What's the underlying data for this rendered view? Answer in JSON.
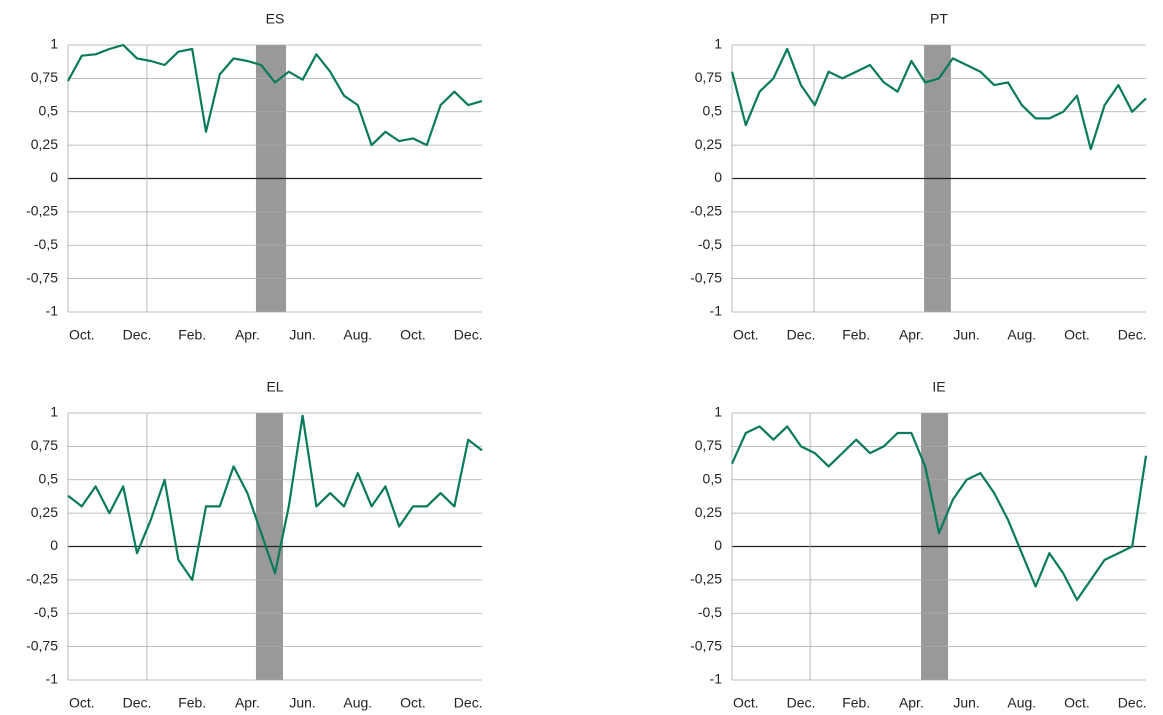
{
  "chart_data": [
    {
      "type": "line",
      "title": "ES",
      "color": "#0a7a5c",
      "grid": true,
      "zero_line": true,
      "vline": 2.36,
      "shade": [
        6.31,
        7.4
      ],
      "xlim": [
        -0.5,
        14.5
      ],
      "ylim": [
        -1,
        1
      ],
      "xticks": [
        {
          "value": 0,
          "label": "Oct."
        },
        {
          "value": 2,
          "label": "Dec."
        },
        {
          "value": 4,
          "label": "Feb."
        },
        {
          "value": 6,
          "label": "Apr."
        },
        {
          "value": 8,
          "label": "Jun."
        },
        {
          "value": 10,
          "label": "Aug."
        },
        {
          "value": 12,
          "label": "Oct."
        },
        {
          "value": 14,
          "label": "Dec."
        }
      ],
      "yticks": [
        1,
        {
          "value": 0.75,
          "label": "0,75"
        },
        {
          "value": 0.5,
          "label": "0,5"
        },
        {
          "value": 0.25,
          "label": "0,25"
        },
        0,
        {
          "value": -0.25,
          "label": "-0,25"
        },
        {
          "value": -0.5,
          "label": "-0,5"
        },
        {
          "value": -0.75,
          "label": "-0,75"
        },
        -1
      ],
      "x": [
        -0.5,
        0,
        0.5,
        1,
        1.5,
        2,
        2.5,
        3,
        3.5,
        4,
        4.5,
        5,
        5.5,
        6,
        6.5,
        7,
        7.5,
        8,
        8.5,
        9,
        9.5,
        10,
        10.5,
        11,
        11.5,
        12,
        12.5,
        13,
        13.5,
        14,
        14.5
      ],
      "values": [
        0.73,
        0.92,
        0.93,
        0.97,
        1.0,
        0.9,
        0.88,
        0.85,
        0.95,
        0.97,
        0.35,
        0.78,
        0.9,
        0.88,
        0.85,
        0.72,
        0.8,
        0.74,
        0.93,
        0.8,
        0.62,
        0.55,
        0.25,
        0.35,
        0.28,
        0.3,
        0.25,
        0.55,
        0.65,
        0.55,
        0.58
      ]
    },
    {
      "type": "line",
      "title": "PT",
      "color": "#0a7a5c",
      "grid": true,
      "zero_line": true,
      "vline": 2.47,
      "shade": [
        6.46,
        7.43
      ],
      "xlim": [
        -0.5,
        14.5
      ],
      "ylim": [
        -1,
        1
      ],
      "xticks": [
        {
          "value": 0,
          "label": "Oct."
        },
        {
          "value": 2,
          "label": "Dec."
        },
        {
          "value": 4,
          "label": "Feb."
        },
        {
          "value": 6,
          "label": "Apr."
        },
        {
          "value": 8,
          "label": "Jun."
        },
        {
          "value": 10,
          "label": "Aug."
        },
        {
          "value": 12,
          "label": "Oct."
        },
        {
          "value": 14,
          "label": "Dec."
        }
      ],
      "yticks": [
        1,
        {
          "value": 0.75,
          "label": "0,75"
        },
        {
          "value": 0.5,
          "label": "0,5"
        },
        {
          "value": 0.25,
          "label": "0,25"
        },
        0,
        {
          "value": -0.25,
          "label": "-0,25"
        },
        {
          "value": -0.5,
          "label": "-0,5"
        },
        {
          "value": -0.75,
          "label": "-0,75"
        },
        -1
      ],
      "x": [
        -0.5,
        0,
        0.5,
        1,
        1.5,
        2,
        2.5,
        3,
        3.5,
        4,
        4.5,
        5,
        5.5,
        6,
        6.5,
        7,
        7.5,
        8,
        8.5,
        9,
        9.5,
        10,
        10.5,
        11,
        11.5,
        12,
        12.5,
        13,
        13.5,
        14,
        14.5
      ],
      "values": [
        0.8,
        0.4,
        0.65,
        0.75,
        0.97,
        0.7,
        0.55,
        0.8,
        0.75,
        0.8,
        0.85,
        0.72,
        0.65,
        0.88,
        0.72,
        0.75,
        0.9,
        0.85,
        0.8,
        0.7,
        0.72,
        0.55,
        0.45,
        0.45,
        0.5,
        0.62,
        0.22,
        0.55,
        0.7,
        0.5,
        0.6
      ]
    },
    {
      "type": "line",
      "title": "EL",
      "color": "#0a7a5c",
      "grid": true,
      "zero_line": true,
      "vline": 2.36,
      "shade": [
        6.31,
        7.29
      ],
      "xlim": [
        -0.5,
        14.5
      ],
      "ylim": [
        -1,
        1
      ],
      "xticks": [
        {
          "value": 0,
          "label": "Oct."
        },
        {
          "value": 2,
          "label": "Dec."
        },
        {
          "value": 4,
          "label": "Feb."
        },
        {
          "value": 6,
          "label": "Apr."
        },
        {
          "value": 8,
          "label": "Jun."
        },
        {
          "value": 10,
          "label": "Aug."
        },
        {
          "value": 12,
          "label": "Oct."
        },
        {
          "value": 14,
          "label": "Dec."
        }
      ],
      "yticks": [
        1,
        {
          "value": 0.75,
          "label": "0,75"
        },
        {
          "value": 0.5,
          "label": "0,5"
        },
        {
          "value": 0.25,
          "label": "0,25"
        },
        0,
        {
          "value": -0.25,
          "label": "-0,25"
        },
        {
          "value": -0.5,
          "label": "-0,5"
        },
        {
          "value": -0.75,
          "label": "-0,75"
        },
        -1
      ],
      "x": [
        -0.5,
        0,
        0.5,
        1,
        1.5,
        2,
        2.5,
        3,
        3.5,
        4,
        4.5,
        5,
        5.5,
        6,
        6.5,
        7,
        7.5,
        8,
        8.5,
        9,
        9.5,
        10,
        10.5,
        11,
        11.5,
        12,
        12.5,
        13,
        13.5,
        14,
        14.5
      ],
      "values": [
        0.38,
        0.3,
        0.45,
        0.25,
        0.45,
        -0.05,
        0.2,
        0.5,
        -0.1,
        -0.25,
        0.3,
        0.3,
        0.6,
        0.4,
        0.1,
        -0.2,
        0.3,
        0.98,
        0.3,
        0.4,
        0.3,
        0.55,
        0.3,
        0.45,
        0.15,
        0.3,
        0.3,
        0.4,
        0.3,
        0.8,
        0.72
      ]
    },
    {
      "type": "line",
      "title": "IE",
      "color": "#0a7a5c",
      "grid": true,
      "zero_line": true,
      "vline": 2.33,
      "shade": [
        6.35,
        7.33
      ],
      "xlim": [
        -0.5,
        14.5
      ],
      "ylim": [
        -1,
        1
      ],
      "xticks": [
        {
          "value": 0,
          "label": "Oct."
        },
        {
          "value": 2,
          "label": "Dec."
        },
        {
          "value": 4,
          "label": "Feb."
        },
        {
          "value": 6,
          "label": "Apr."
        },
        {
          "value": 8,
          "label": "Jun."
        },
        {
          "value": 10,
          "label": "Aug."
        },
        {
          "value": 12,
          "label": "Oct."
        },
        {
          "value": 14,
          "label": "Dec."
        }
      ],
      "yticks": [
        1,
        {
          "value": 0.75,
          "label": "0,75"
        },
        {
          "value": 0.5,
          "label": "0,5"
        },
        {
          "value": 0.25,
          "label": "0,25"
        },
        0,
        {
          "value": -0.25,
          "label": "-0,25"
        },
        {
          "value": -0.5,
          "label": "-0,5"
        },
        {
          "value": -0.75,
          "label": "-0,75"
        },
        -1
      ],
      "x": [
        -0.5,
        0,
        0.5,
        1,
        1.5,
        2,
        2.5,
        3,
        3.5,
        4,
        4.5,
        5,
        5.5,
        6,
        6.5,
        7,
        7.5,
        8,
        8.5,
        9,
        9.5,
        10,
        10.5,
        11,
        11.5,
        12,
        12.5,
        13,
        13.5,
        14,
        14.5
      ],
      "values": [
        0.62,
        0.85,
        0.9,
        0.8,
        0.9,
        0.75,
        0.7,
        0.6,
        0.7,
        0.8,
        0.7,
        0.75,
        0.85,
        0.85,
        0.6,
        0.1,
        0.35,
        0.5,
        0.55,
        0.4,
        0.2,
        -0.05,
        -0.3,
        -0.05,
        -0.2,
        -0.4,
        -0.25,
        -0.1,
        -0.05,
        0.0,
        0.68
      ]
    }
  ]
}
